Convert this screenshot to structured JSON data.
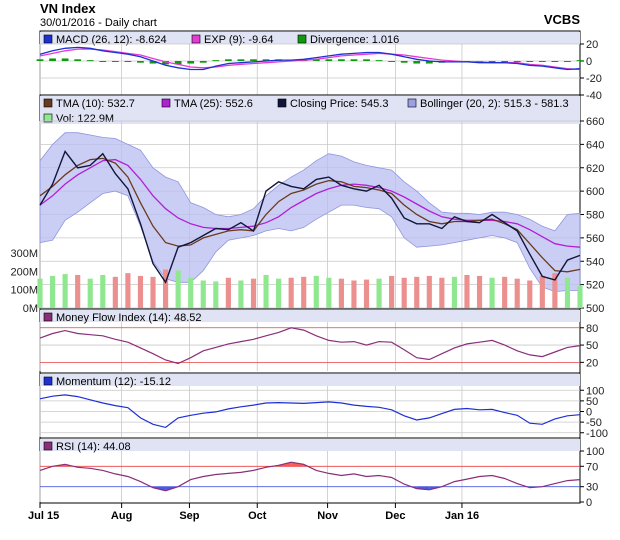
{
  "header": {
    "title": "VN Index",
    "subtitle": "30/01/2016 - Daily chart",
    "brand": "VCBS"
  },
  "colors": {
    "panel_bg": "#ffffff",
    "legend_bg": "#dfe3f4",
    "grid": "#c8c8c8",
    "tma10": "#6b3a1d",
    "tma25": "#b21fd6",
    "close": "#10153a",
    "boll_fill": "#b9bdf0",
    "boll_line": "#8f95de",
    "vol_up": "#8fe88f",
    "vol_down": "#ec8f8f",
    "mfi": "#8a2e79",
    "mom": "#1e2fd4",
    "rsi": "#8a2e79",
    "ref_line": "#e84040",
    "macd": "#1e2fd4",
    "exp": "#e53ad3",
    "div_up": "#0d9a0d",
    "div_down": "#0d9a0d"
  },
  "chart_data": [
    {
      "type": "line",
      "name": "macd-panel",
      "legend": [
        {
          "label": "MACD (26, 12): -8.624",
          "color": "#1e2fd4"
        },
        {
          "label": "EXP (9): -9.64",
          "color": "#e53ad3"
        },
        {
          "label": "Divergence: 1.016",
          "color": "#0d9a0d"
        }
      ],
      "ylim": [
        -40,
        20
      ],
      "yticks": [
        20,
        0,
        -20,
        -40
      ],
      "macd": [
        8,
        12,
        15,
        16,
        15,
        12,
        10,
        8,
        5,
        0,
        -5,
        -8,
        -10,
        -10,
        -6,
        -3,
        -2,
        -1,
        0,
        1,
        1,
        2,
        4,
        6,
        8,
        9,
        10,
        10,
        8,
        5,
        2,
        0,
        -1,
        -1,
        -1,
        -2,
        -2,
        -2,
        -3,
        -5,
        -6,
        -8,
        -10,
        -9
      ],
      "exp": [
        6,
        9,
        12,
        14,
        14,
        13,
        11,
        9,
        7,
        3,
        -1,
        -4,
        -7,
        -8,
        -7,
        -5,
        -4,
        -3,
        -2,
        -1,
        0,
        1,
        2,
        4,
        6,
        7,
        8,
        9,
        8,
        7,
        5,
        3,
        1,
        0,
        -1,
        -1,
        -2,
        -2,
        -2,
        -4,
        -5,
        -7,
        -9,
        -10
      ],
      "divergence": [
        2,
        3,
        3,
        2,
        1,
        -1,
        -1,
        -1,
        -2,
        -3,
        -4,
        -4,
        -3,
        -2,
        1,
        2,
        2,
        2,
        2,
        2,
        1,
        1,
        2,
        2,
        2,
        2,
        2,
        1,
        0,
        -2,
        -3,
        -3,
        -2,
        -1,
        0,
        -1,
        0,
        0,
        -1,
        -1,
        -1,
        -1,
        -1,
        1
      ]
    },
    {
      "type": "line",
      "name": "price-panel",
      "legend": [
        {
          "label": "TMA (10): 532.7",
          "color": "#6b3a1d"
        },
        {
          "label": "TMA (25): 552.6",
          "color": "#b21fd6"
        },
        {
          "label": "Closing Price: 545.3",
          "color": "#10153a"
        },
        {
          "label": "Bollinger (20, 2): 515.3 - 581.3",
          "color": "#9aa0e3"
        },
        {
          "label": "Vol: 122.9M",
          "color": "#8fe88f"
        }
      ],
      "ylim": [
        500,
        660
      ],
      "yticks": [
        660,
        640,
        620,
        600,
        580,
        560,
        540,
        520,
        500
      ],
      "vol_ticks": [
        "300M",
        "200M",
        "100M",
        "0M"
      ],
      "vol_tick_values": [
        300,
        200,
        100,
        0
      ],
      "vol_max": 420,
      "close": [
        588,
        606,
        634,
        620,
        622,
        632,
        615,
        602,
        572,
        538,
        522,
        552,
        556,
        562,
        568,
        567,
        573,
        566,
        600,
        608,
        604,
        602,
        610,
        612,
        605,
        602,
        600,
        605,
        594,
        577,
        572,
        572,
        568,
        578,
        574,
        573,
        580,
        573,
        566,
        546,
        527,
        524,
        541,
        545
      ],
      "tma10": [
        596,
        604,
        614,
        622,
        627,
        628,
        624,
        612,
        590,
        570,
        556,
        553,
        554,
        560,
        563,
        566,
        567,
        566,
        580,
        591,
        598,
        601,
        606,
        609,
        608,
        604,
        603,
        601,
        598,
        588,
        580,
        574,
        572,
        574,
        574,
        575,
        576,
        572,
        567,
        555,
        543,
        532,
        531,
        533
      ],
      "tma25": [
        588,
        596,
        606,
        614,
        620,
        626,
        627,
        622,
        610,
        596,
        585,
        577,
        572,
        569,
        568,
        568,
        569,
        570,
        573,
        578,
        586,
        592,
        598,
        602,
        605,
        606,
        605,
        603,
        600,
        595,
        589,
        583,
        578,
        576,
        575,
        575,
        575,
        574,
        572,
        567,
        561,
        555,
        553,
        552
      ],
      "boll_upper": [
        626,
        640,
        650,
        650,
        648,
        646,
        645,
        640,
        635,
        620,
        612,
        608,
        590,
        586,
        580,
        578,
        580,
        585,
        596,
        605,
        612,
        618,
        626,
        632,
        630,
        625,
        622,
        620,
        618,
        608,
        600,
        590,
        582,
        581,
        581,
        580,
        582,
        582,
        580,
        576,
        570,
        566,
        580,
        581
      ],
      "boll_lower": [
        556,
        558,
        575,
        582,
        590,
        598,
        600,
        596,
        570,
        540,
        525,
        522,
        522,
        532,
        548,
        558,
        560,
        562,
        566,
        568,
        566,
        569,
        576,
        582,
        588,
        588,
        586,
        585,
        578,
        560,
        552,
        553,
        554,
        556,
        558,
        560,
        562,
        560,
        556,
        534,
        518,
        514,
        515,
        515
      ],
      "volume": [
        160,
        175,
        185,
        180,
        160,
        180,
        170,
        190,
        175,
        170,
        210,
        205,
        165,
        150,
        145,
        165,
        150,
        160,
        180,
        160,
        165,
        170,
        175,
        165,
        160,
        150,
        155,
        160,
        175,
        165,
        170,
        175,
        165,
        170,
        180,
        175,
        165,
        170,
        160,
        150,
        175,
        190,
        165,
        120
      ],
      "volume_up": [
        true,
        true,
        true,
        false,
        true,
        true,
        false,
        false,
        false,
        false,
        false,
        true,
        true,
        true,
        true,
        false,
        true,
        false,
        true,
        true,
        false,
        false,
        true,
        true,
        false,
        false,
        false,
        true,
        false,
        false,
        false,
        false,
        false,
        true,
        false,
        false,
        true,
        false,
        false,
        false,
        false,
        false,
        true,
        true
      ],
      "xticks": [
        "Jul 15",
        "Aug",
        "Sep",
        "Oct",
        "Nov",
        "Dec",
        "Jan 16"
      ],
      "xtick_index": [
        0,
        6.5,
        11.9,
        17.3,
        22.9,
        28.3,
        33.6
      ]
    },
    {
      "type": "line",
      "name": "mfi-panel",
      "legend": [
        {
          "label": "Money Flow Index (14): 48.52",
          "color": "#8a2e79"
        }
      ],
      "ylim": [
        5,
        90
      ],
      "yticks": [
        80,
        50,
        20
      ],
      "ref_lines": [
        80,
        20
      ],
      "values": [
        62,
        70,
        75,
        70,
        68,
        66,
        60,
        55,
        45,
        35,
        24,
        18,
        28,
        40,
        46,
        52,
        56,
        60,
        66,
        72,
        80,
        76,
        66,
        58,
        55,
        56,
        50,
        56,
        55,
        42,
        28,
        25,
        35,
        45,
        52,
        55,
        58,
        50,
        40,
        33,
        30,
        38,
        46,
        49
      ]
    },
    {
      "type": "line",
      "name": "momentum-panel",
      "legend": [
        {
          "label": "Momentum (12): -15.12",
          "color": "#1e2fd4"
        }
      ],
      "ylim": [
        -120,
        120
      ],
      "yticks": [
        100,
        50,
        0,
        -50,
        -100
      ],
      "values": [
        60,
        72,
        78,
        70,
        55,
        40,
        28,
        18,
        -30,
        -60,
        -75,
        -30,
        -18,
        -8,
        -2,
        12,
        22,
        30,
        40,
        42,
        40,
        38,
        42,
        45,
        40,
        30,
        24,
        20,
        8,
        -20,
        -40,
        -30,
        -10,
        10,
        14,
        8,
        10,
        -5,
        -18,
        -55,
        -60,
        -35,
        -20,
        -15
      ]
    },
    {
      "type": "line",
      "name": "rsi-panel",
      "legend": [
        {
          "label": "RSI (14): 44.08",
          "color": "#8a2e79"
        }
      ],
      "ylim": [
        0,
        100
      ],
      "yticks": [
        100,
        70,
        30,
        0
      ],
      "ref_lines": [
        70,
        30
      ],
      "values": [
        62,
        70,
        74,
        68,
        66,
        62,
        55,
        50,
        40,
        28,
        22,
        30,
        44,
        50,
        54,
        56,
        58,
        62,
        68,
        72,
        78,
        74,
        62,
        56,
        52,
        55,
        50,
        52,
        48,
        35,
        26,
        24,
        30,
        40,
        45,
        50,
        52,
        46,
        36,
        28,
        30,
        36,
        42,
        44
      ]
    }
  ]
}
